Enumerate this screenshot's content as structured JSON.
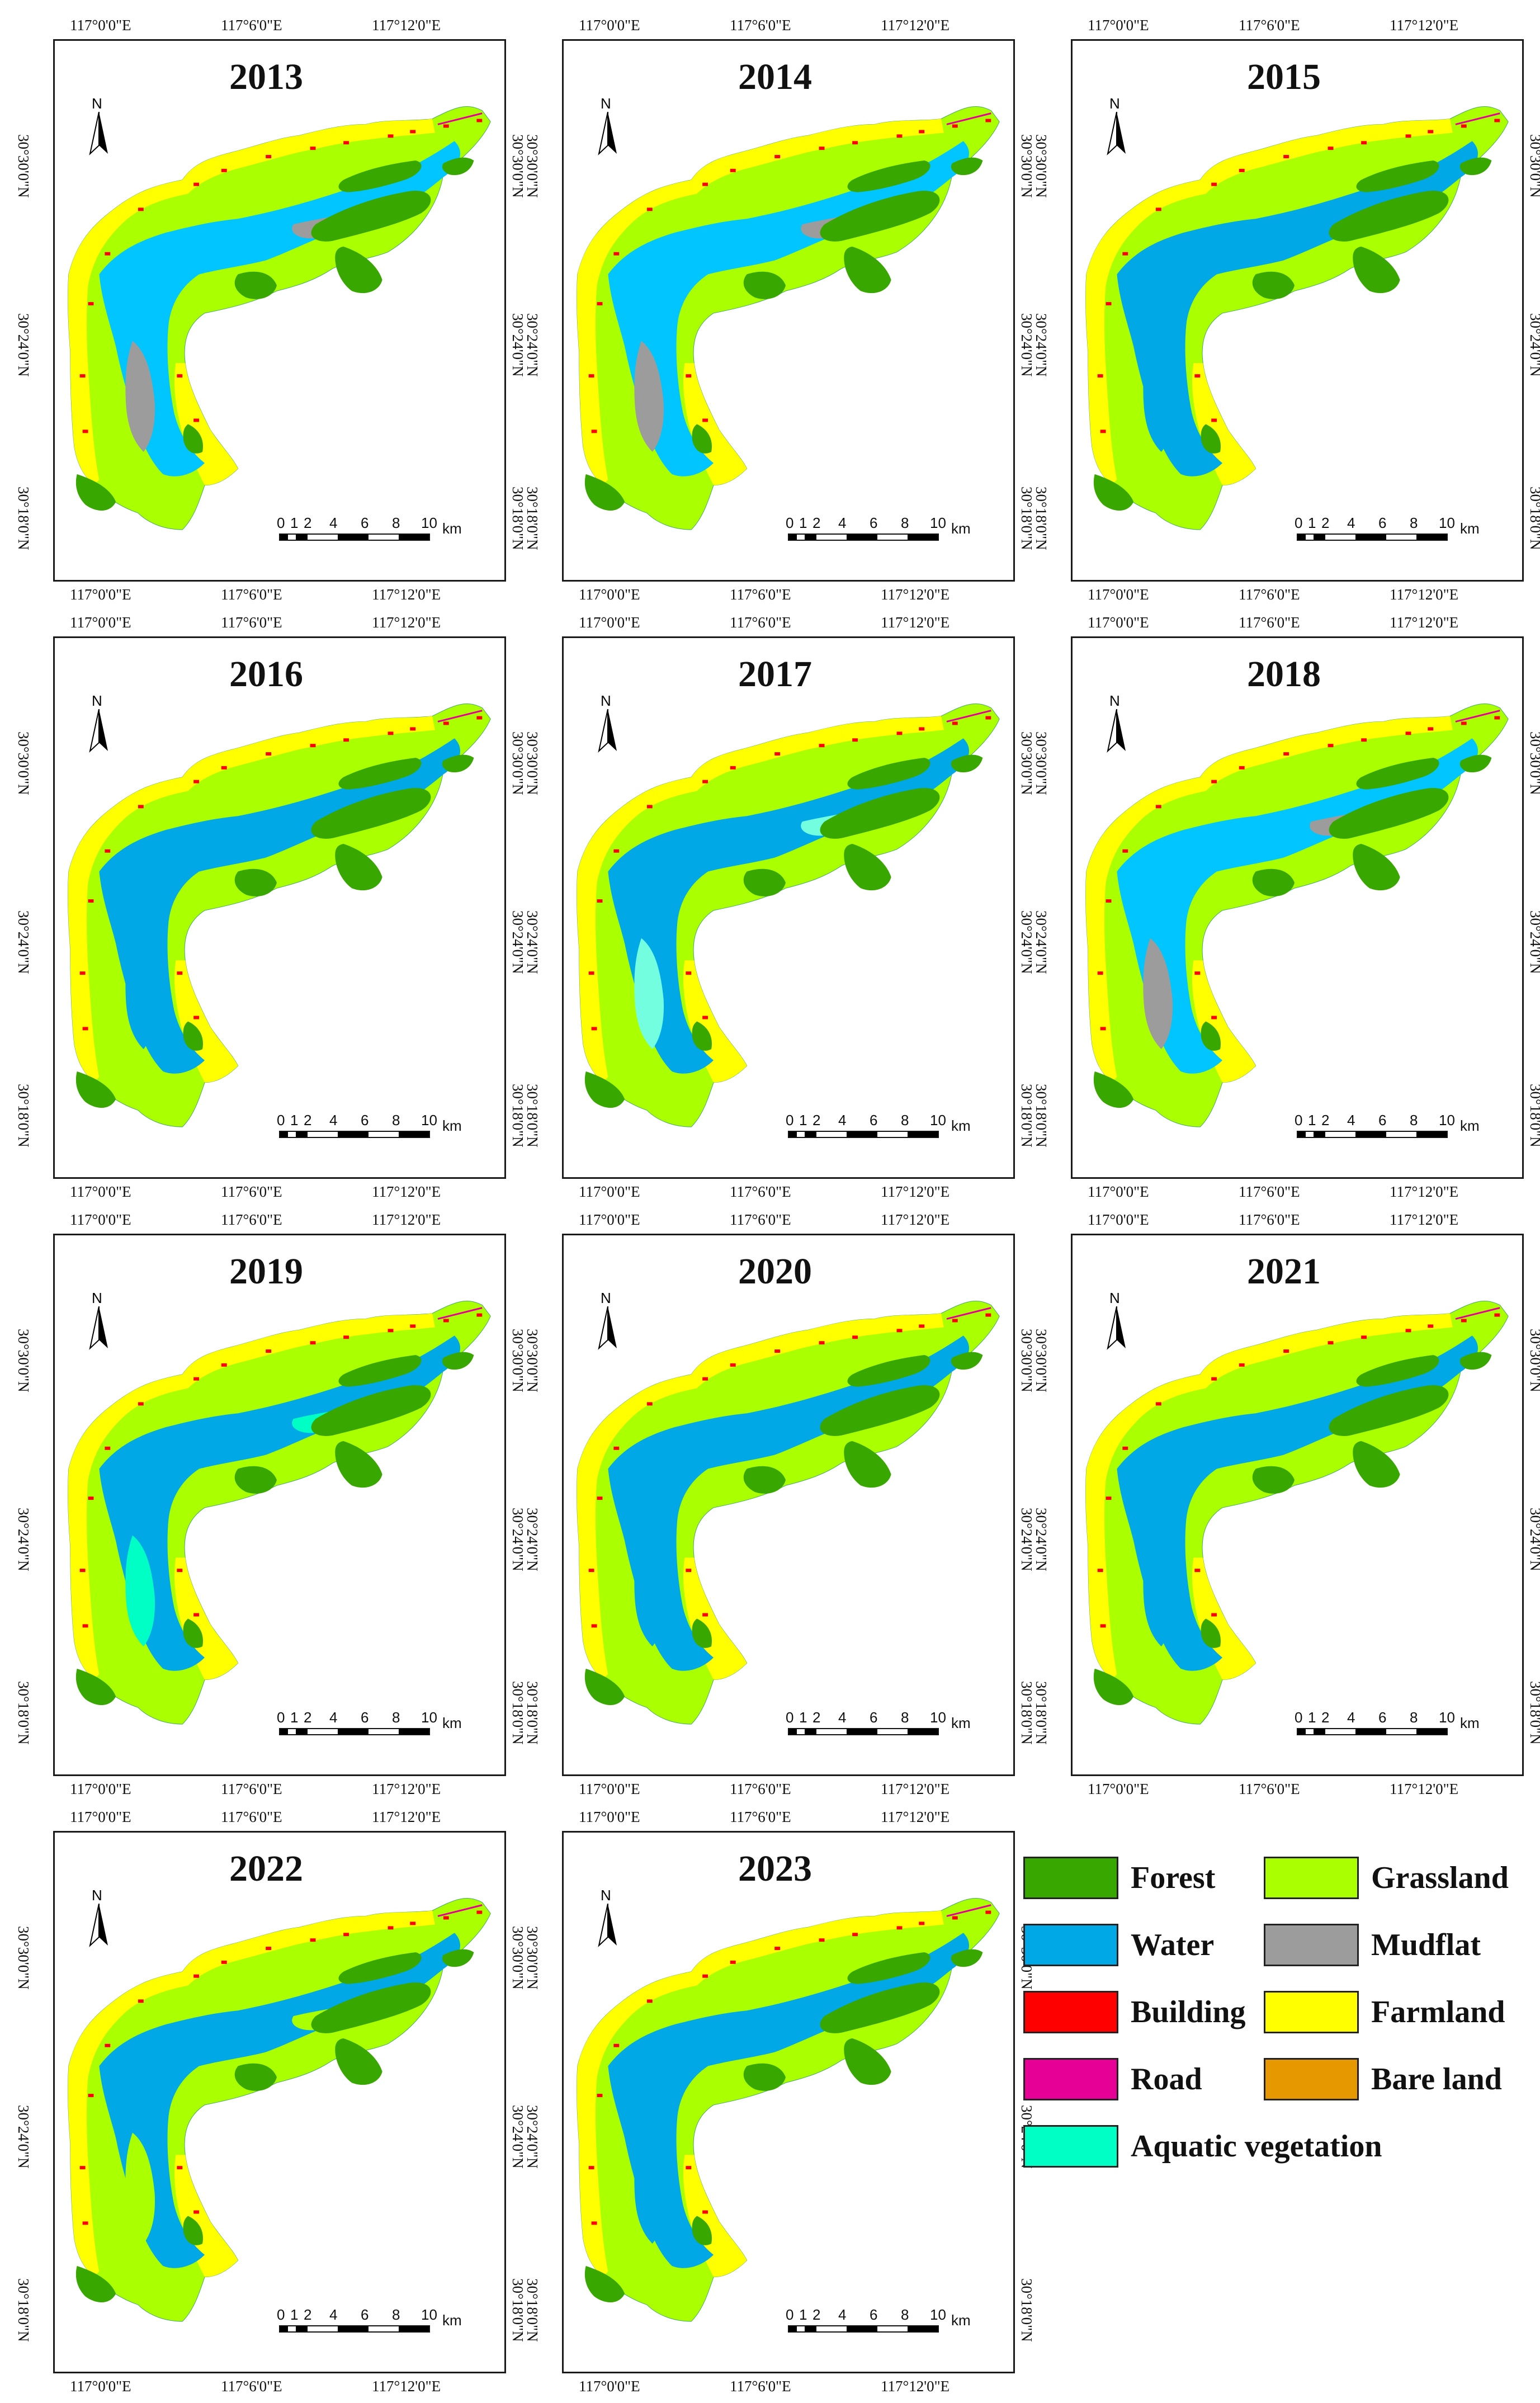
{
  "panels": [
    {
      "year": "2013"
    },
    {
      "year": "2014"
    },
    {
      "year": "2015"
    },
    {
      "year": "2016"
    },
    {
      "year": "2017"
    },
    {
      "year": "2018"
    },
    {
      "year": "2019"
    },
    {
      "year": "2020"
    },
    {
      "year": "2021"
    },
    {
      "year": "2022"
    },
    {
      "year": "2023"
    }
  ],
  "longitude_ticks": [
    "117°0'0\"E",
    "117°6'0\"E",
    "117°12'0\"E"
  ],
  "latitude_ticks": [
    "30°30'0\"N",
    "30°24'0\"N",
    "30°18'0\"N"
  ],
  "north_label": "N",
  "scale_bar": {
    "labels": [
      "0",
      "1",
      "2",
      "4",
      "6",
      "8",
      "10"
    ],
    "unit": "km"
  },
  "legend": [
    {
      "label": "Forest",
      "color": "#38a800"
    },
    {
      "label": "Grassland",
      "color": "#aaff00"
    },
    {
      "label": "Water",
      "color": "#00a9e6"
    },
    {
      "label": "Mudflat",
      "color": "#9c9c9c"
    },
    {
      "label": "Building",
      "color": "#ff0000"
    },
    {
      "label": "Farmland",
      "color": "#ffff00"
    },
    {
      "label": "Road",
      "color": "#e60096"
    },
    {
      "label": "Bare land",
      "color": "#e69800"
    },
    {
      "label": "Aquatic vegetation",
      "color": "#00ffc5"
    }
  ],
  "panel_colors": {
    "2013": {
      "lake": "#00c5ff",
      "mud": "#9c9c9c"
    },
    "2014": {
      "lake": "#00c5ff",
      "mud": "#9c9c9c"
    },
    "2015": {
      "lake": "#00a9e6",
      "mud": "#00a9e6"
    },
    "2016": {
      "lake": "#00a9e6",
      "mud": "#00a9e6"
    },
    "2017": {
      "lake": "#00a9e6",
      "mud": "#73ffdf"
    },
    "2018": {
      "lake": "#00c5ff",
      "mud": "#9c9c9c"
    },
    "2019": {
      "lake": "#00a9e6",
      "mud": "#00ffc5"
    },
    "2020": {
      "lake": "#00a9e6",
      "mud": "#00a9e6"
    },
    "2021": {
      "lake": "#00a9e6",
      "mud": "#00a9e6"
    },
    "2022": {
      "lake": "#00a9e6",
      "mud": "#aaff00"
    },
    "2023": {
      "lake": "#00a9e6",
      "mud": "#00a9e6"
    }
  }
}
